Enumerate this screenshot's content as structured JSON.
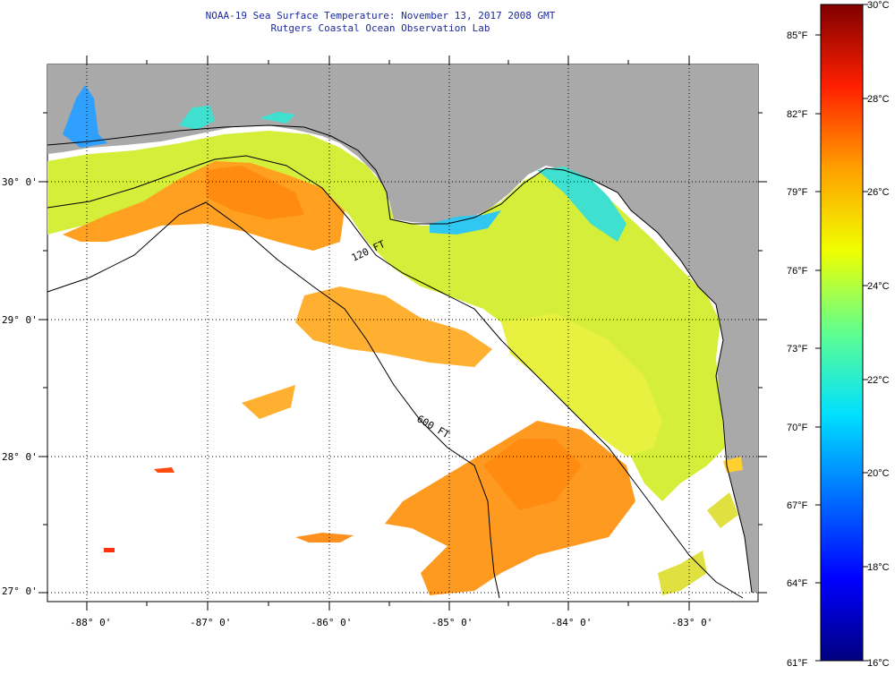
{
  "title": {
    "line1": "NOAA-19 Sea Surface Temperature:  November 13, 2017 2008 GMT",
    "line2": "Rutgers Coastal Ocean Observation Lab"
  },
  "map": {
    "lon_ticks": [
      "-88° 0'",
      "-87° 0'",
      "-86° 0'",
      "-85° 0'",
      "-84° 0'",
      "-83° 0'"
    ],
    "lat_ticks": [
      "30° 0'",
      "29° 0'",
      "28° 0'",
      "27° 0'"
    ],
    "contour_labels": [
      "120 FT",
      "600 FT"
    ],
    "colors": {
      "land": "#a9a9a9",
      "no_data": "#ffffff",
      "grid": "#000000",
      "coast": "#000000"
    }
  },
  "colorbar": {
    "fahrenheit": [
      "85°F",
      "82°F",
      "79°F",
      "76°F",
      "73°F",
      "70°F",
      "67°F",
      "64°F",
      "61°F"
    ],
    "celsius": [
      "30°C",
      "28°C",
      "26°C",
      "24°C",
      "22°C",
      "20°C",
      "18°C",
      "16°C"
    ],
    "range_c": [
      16,
      30
    ],
    "colors": [
      "#00007f",
      "#0000ff",
      "#0080ff",
      "#00ffff",
      "#80ff80",
      "#ffff00",
      "#ff8000",
      "#ff0000",
      "#7f0000"
    ]
  }
}
